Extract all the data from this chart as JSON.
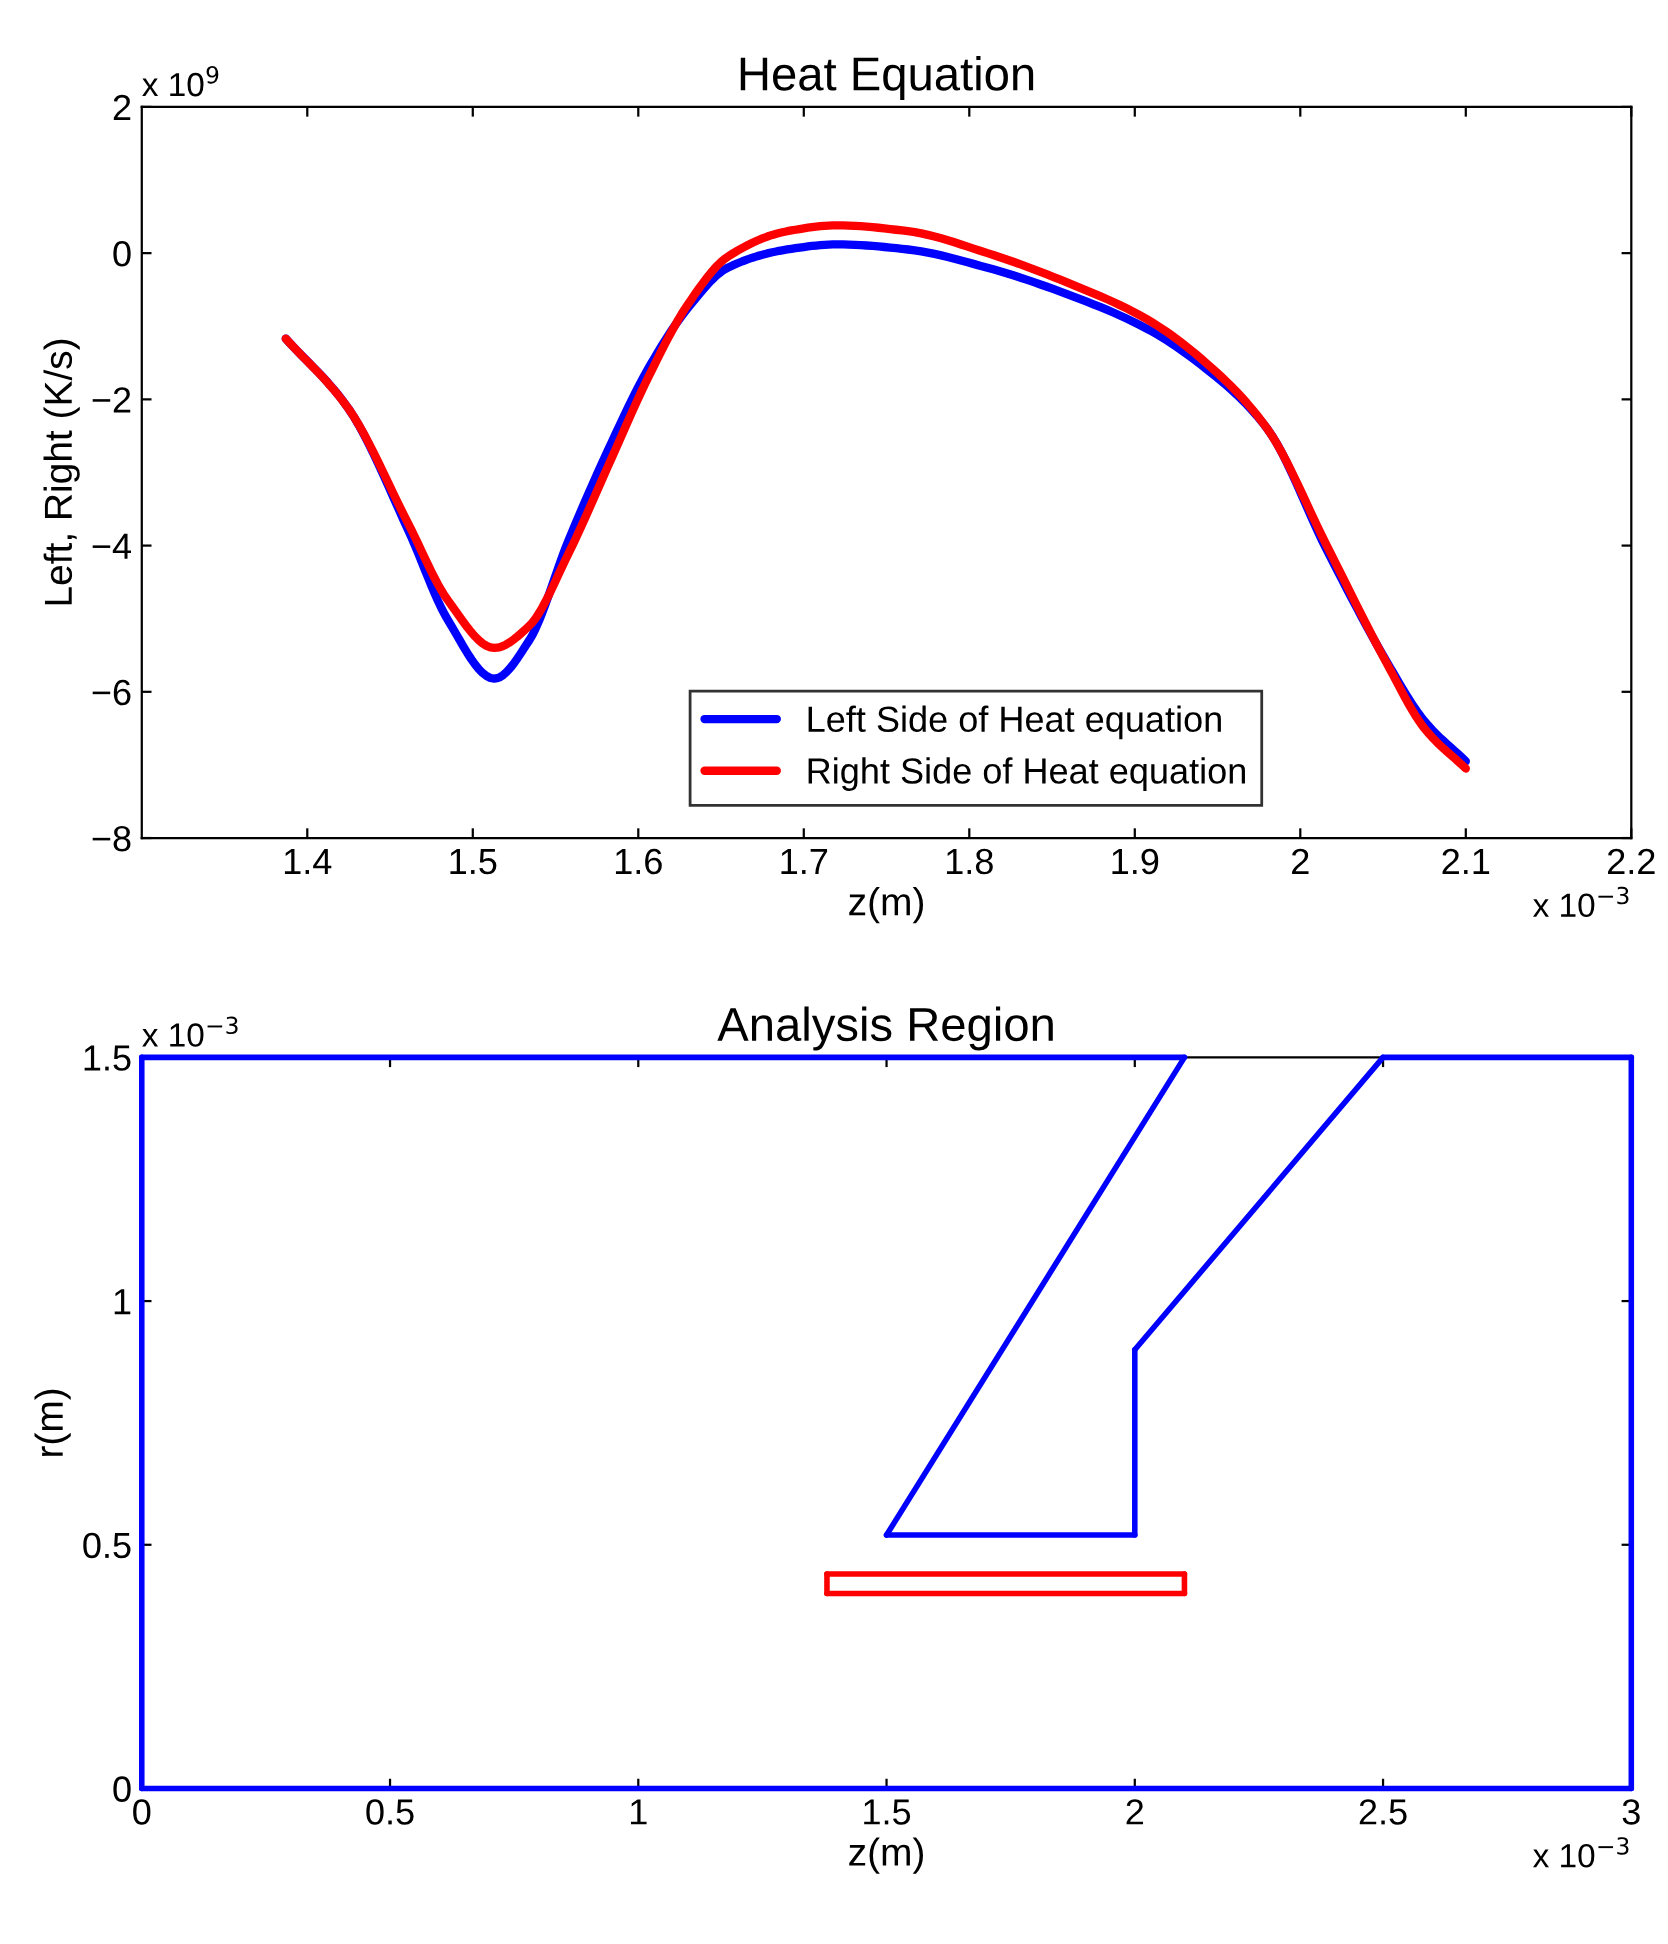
{
  "chart_data": [
    {
      "type": "line",
      "title": "Heat Equation",
      "xlabel": "z(m)",
      "ylabel": "Left, Right (K/s)",
      "annotations": [
        "x 10$^{9}$",
        "x 10$^{−3}$"
      ],
      "xlim": [
        1.3,
        2.2
      ],
      "xticks": [
        1.4,
        1.5,
        1.6,
        1.7,
        1.8,
        1.9,
        2,
        2.1,
        2.2
      ],
      "ylim": [
        -8,
        2
      ],
      "yticks": [
        {
          "value": -8,
          "label": "−8"
        },
        {
          "value": -6,
          "label": "−6"
        },
        {
          "value": -4,
          "label": "−4"
        },
        {
          "value": -2,
          "label": "−2"
        },
        0,
        2
      ],
      "x": [
        1.387,
        1.425,
        1.461,
        1.485,
        1.513,
        1.534,
        1.558,
        1.582,
        1.606,
        1.63,
        1.654,
        1.69,
        1.72,
        1.763,
        1.811,
        1.859,
        1.907,
        1.943,
        1.98,
        2.016,
        2.052,
        2.075,
        2.1
      ],
      "legend": "bottom",
      "grid": false,
      "marker": "none",
      "line_style": "solid",
      "series": [
        {
          "name": "Left Side of Heat equation",
          "color": "#0000ff",
          "values": [
            -1.17,
            -2.13,
            -3.79,
            -5.02,
            -5.82,
            -5.3,
            -3.92,
            -2.68,
            -1.58,
            -0.75,
            -0.2,
            0.05,
            0.12,
            0.05,
            -0.2,
            -0.56,
            -1.03,
            -1.58,
            -2.4,
            -4.06,
            -5.58,
            -6.4,
            -6.95
          ]
        },
        {
          "name": "Right Side of Heat equation",
          "color": "#ff0000",
          "values": [
            -1.17,
            -2.13,
            -3.7,
            -4.75,
            -5.4,
            -5.1,
            -4.1,
            -2.9,
            -1.7,
            -0.7,
            -0.05,
            0.3,
            0.38,
            0.3,
            0.0,
            -0.4,
            -0.9,
            -1.5,
            -2.4,
            -4.0,
            -5.6,
            -6.5,
            -7.05
          ]
        }
      ]
    },
    {
      "type": "line",
      "title": "Analysis Region",
      "xlabel": "z(m)",
      "ylabel": "r(m)",
      "annotations": [
        "x 10$^{−3}$",
        "x 10$^{−3}$"
      ],
      "xlim": [
        0,
        3
      ],
      "xticks": [
        0,
        0.5,
        1,
        1.5,
        2,
        2.5,
        3
      ],
      "ylim": [
        0,
        1.5
      ],
      "yticks": [
        0,
        0.5,
        1,
        1.5
      ],
      "grid": false,
      "marker": "none",
      "line_style": "solid",
      "series": [
        {
          "color": "#0000ff",
          "x": [
            0,
            2.1
          ],
          "values": [
            1.5,
            1.5
          ]
        },
        {
          "color": "#0000ff",
          "x": [
            2.5,
            3
          ],
          "values": [
            1.5,
            1.5
          ]
        },
        {
          "color": "#0000ff",
          "x": [
            0,
            3
          ],
          "values": [
            0,
            0
          ]
        },
        {
          "color": "#0000ff",
          "x": [
            0,
            0
          ],
          "values": [
            0,
            1.5
          ]
        },
        {
          "color": "#0000ff",
          "x": [
            3,
            3
          ],
          "values": [
            0,
            1.5
          ]
        },
        {
          "color": "#0000ff",
          "x": [
            1.5,
            2.1
          ],
          "values": [
            0.52,
            1.5
          ]
        },
        {
          "color": "#0000ff",
          "x": [
            1.5,
            2
          ],
          "values": [
            0.52,
            0.52
          ]
        },
        {
          "color": "#0000ff",
          "x": [
            2,
            2
          ],
          "values": [
            0.52,
            0.9
          ]
        },
        {
          "color": "#0000ff",
          "x": [
            2,
            2.5
          ],
          "values": [
            0.9,
            1.5
          ]
        },
        {
          "color": "#ff0000",
          "x": [
            1.38,
            2.1
          ],
          "values": [
            0.4,
            0.4
          ]
        },
        {
          "color": "#ff0000",
          "x": [
            1.38,
            2.1
          ],
          "values": [
            0.44,
            0.44
          ]
        },
        {
          "color": "#ff0000",
          "x": [
            1.38,
            1.38
          ],
          "values": [
            0.4,
            0.44
          ]
        },
        {
          "color": "#ff0000",
          "x": [
            2.1,
            2.1
          ],
          "values": [
            0.4,
            0.44
          ]
        }
      ]
    }
  ]
}
